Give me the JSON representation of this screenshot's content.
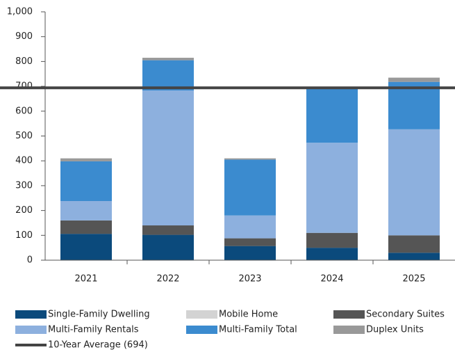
{
  "chart_data": {
    "type": "stacked_bar",
    "categories": [
      "2021",
      "2022",
      "2023",
      "2024",
      "2025"
    ],
    "series": [
      {
        "name": "Single-Family Dwelling",
        "color": "#0b4a7c",
        "values": [
          106,
          102,
          57,
          50,
          30
        ]
      },
      {
        "name": "Mobile Home",
        "color": "#d3d3d3",
        "values": [
          0,
          0,
          0,
          0,
          0
        ]
      },
      {
        "name": "Secondary Suites",
        "color": "#555555",
        "values": [
          54,
          38,
          31,
          60,
          70
        ]
      },
      {
        "name": "Multi-Family Rentals",
        "color": "#8db0de",
        "values": [
          78,
          543,
          92,
          363,
          427
        ]
      },
      {
        "name": "Multi-Family Total",
        "color": "#3b8bcf",
        "values": [
          160,
          122,
          225,
          217,
          191
        ]
      },
      {
        "name": "Duplex Units",
        "color": "#999999",
        "values": [
          12,
          10,
          5,
          5,
          17
        ]
      }
    ],
    "reference_line": {
      "name": "10-Year Average (694)",
      "value": 694,
      "color": "#444444"
    },
    "ylim": [
      0,
      1000
    ],
    "yticks": [
      0,
      100,
      200,
      300,
      400,
      500,
      600,
      700,
      800,
      900,
      {
        "value": 1000,
        "label": "1,000"
      }
    ]
  }
}
